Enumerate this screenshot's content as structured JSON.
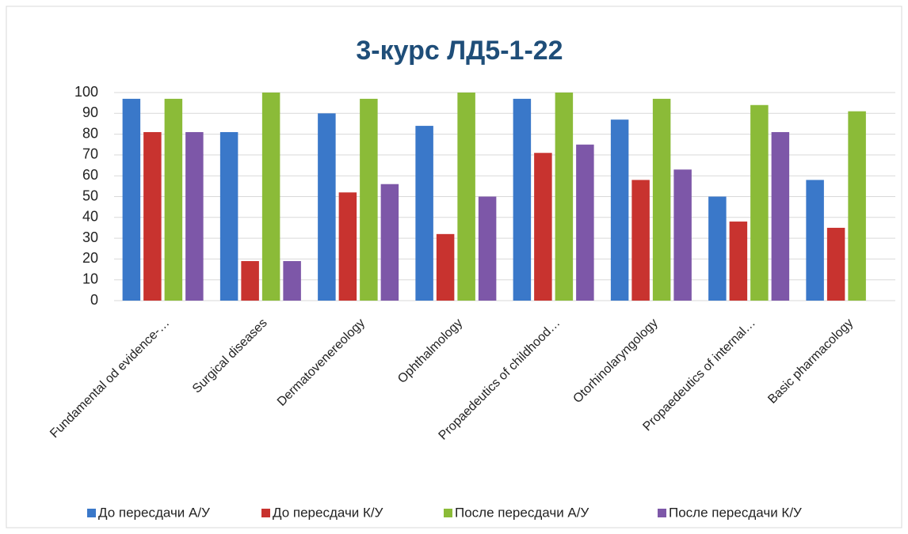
{
  "chart_data": {
    "type": "bar",
    "title": "3-курс    ЛД5-1-22",
    "categories": [
      "Fundamental od evidence-…",
      "Surgical diseases",
      "Dermatovenereology",
      "Ophthalmology",
      "Propaedeutics of childhood…",
      "Otorhinolaryngology",
      "Propaedeutics of internal…",
      "Basic pharmacology"
    ],
    "series": [
      {
        "name": "До пересдачи А/У",
        "color": "#3a78c9",
        "values": [
          97,
          81,
          90,
          84,
          97,
          87,
          50,
          58
        ]
      },
      {
        "name": "До пересдачи К/У",
        "color": "#c8332f",
        "values": [
          81,
          19,
          52,
          32,
          71,
          58,
          38,
          35
        ]
      },
      {
        "name": "После пересдачи А/У",
        "color": "#8bbb38",
        "values": [
          97,
          100,
          97,
          100,
          100,
          97,
          94,
          91
        ]
      },
      {
        "name": "После пересдачи К/У",
        "color": "#7d57a8",
        "values": [
          81,
          19,
          56,
          50,
          75,
          63,
          81,
          null
        ]
      }
    ],
    "ylim": [
      0,
      100
    ],
    "yticks": [
      0,
      10,
      20,
      30,
      40,
      50,
      60,
      70,
      80,
      90,
      100
    ],
    "grid": true,
    "legend": "bottom"
  }
}
